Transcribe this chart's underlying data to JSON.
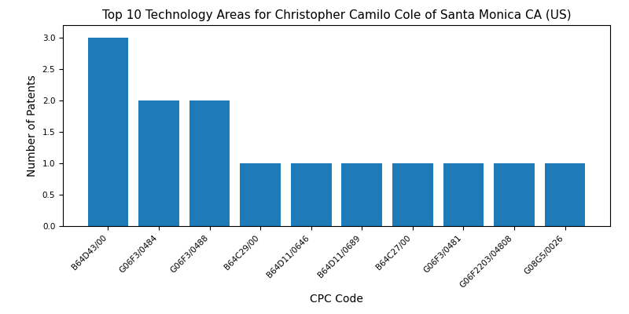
{
  "title": "Top 10 Technology Areas for Christopher Camilo Cole of Santa Monica CA (US)",
  "xlabel": "CPC Code",
  "ylabel": "Number of Patents",
  "categories": [
    "B64D43/00",
    "G06F3/0484",
    "G06F3/0488",
    "B64C29/00",
    "B64D11/0646",
    "B64D11/0689",
    "B64C27/00",
    "G06F3/0481",
    "G06F2203/04808",
    "G08G5/0026"
  ],
  "values": [
    3,
    2,
    2,
    1,
    1,
    1,
    1,
    1,
    1,
    1
  ],
  "bar_color": "#1f7ab8",
  "figsize": [
    8,
    4
  ],
  "dpi": 100,
  "ylim": [
    0,
    3.2
  ],
  "yticks": [
    0.0,
    0.5,
    1.0,
    1.5,
    2.0,
    2.5,
    3.0
  ],
  "title_fontsize": 11,
  "label_fontsize": 10,
  "tick_fontsize": 7.5
}
